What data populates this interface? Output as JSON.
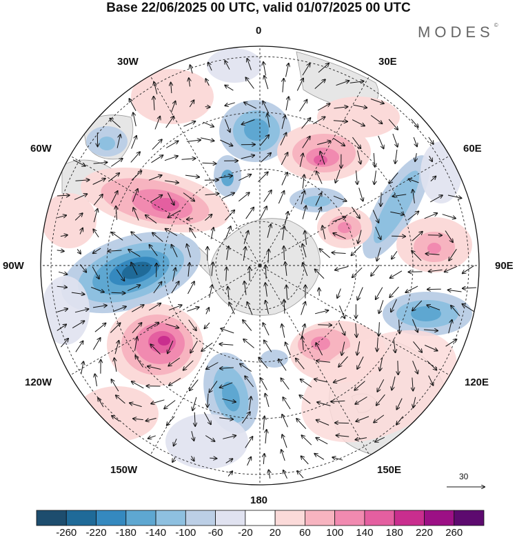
{
  "title": "Base 22/06/2025 00 UTC, valid 01/07/2025 00 UTC",
  "brand": "MODES",
  "brand_mark": "©",
  "longitude_labels": {
    "lon_0": "0",
    "lon_30e": "30E",
    "lon_60e": "60E",
    "lon_90e": "90E",
    "lon_120e": "120E",
    "lon_150e": "150E",
    "lon_180": "180",
    "lon_150w": "150W",
    "lon_120w": "120W",
    "lon_90w": "90W",
    "lon_60w": "60W",
    "lon_30w": "30W"
  },
  "reference_vector": "30",
  "colorbar": {
    "colors": [
      "#1d4d6e",
      "#1f6a98",
      "#3589bf",
      "#5ea7d1",
      "#8ec0e0",
      "#bccfe6",
      "#e0e2f0",
      "#ffffff",
      "#fbdad9",
      "#f7b4c0",
      "#f18ab0",
      "#e45fa0",
      "#c92e8e",
      "#9c1085",
      "#5d0a6f"
    ],
    "labels": [
      "-260",
      "-220",
      "-180",
      "-140",
      "-100",
      "-60",
      "-20",
      "20",
      "60",
      "100",
      "140",
      "180",
      "220",
      "260"
    ]
  }
}
